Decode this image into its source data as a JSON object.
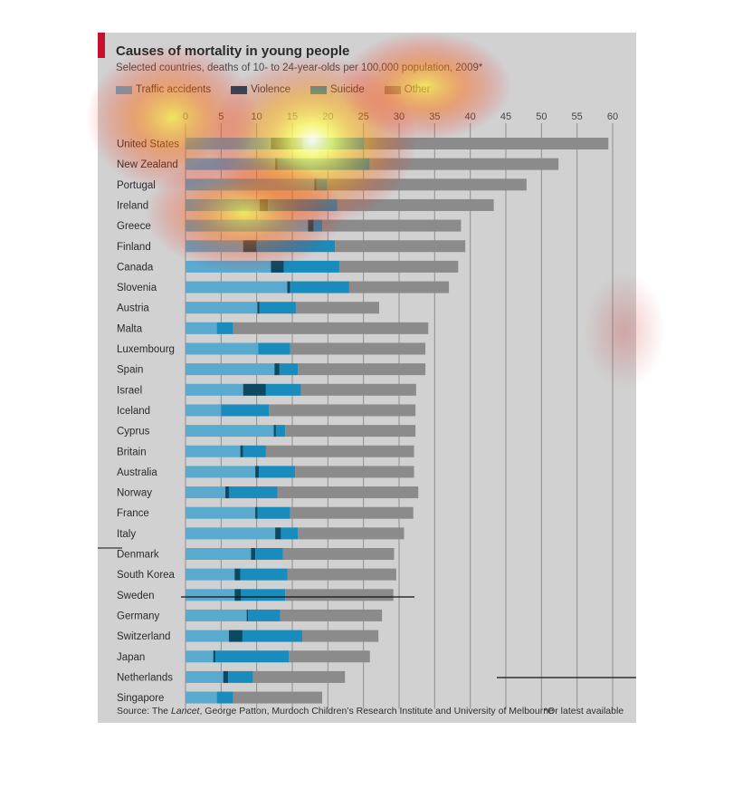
{
  "title": "Causes of mortality in young people",
  "subtitle": "Selected countries, deaths of 10- to 24-year-olds per 100,000 population, 2009*",
  "source_prefix": "Source: The ",
  "source_italic": "Lancet",
  "source_suffix": ", George Patton, Murdoch Children’s Research Institute and University of Melbourne",
  "footnote": "*Or latest available",
  "legend": [
    {
      "label": "Traffic accidents",
      "color": "#5aa9cf"
    },
    {
      "label": "Violence",
      "color": "#0b4a62"
    },
    {
      "label": "Suicide",
      "color": "#1a8bbd"
    },
    {
      "label": "Other",
      "color": "#8b8b8b"
    }
  ],
  "chart_data": {
    "type": "bar",
    "orientation": "horizontal",
    "stacked": true,
    "title": "Causes of mortality in young people",
    "subtitle": "Selected countries, deaths of 10- to 24-year-olds per 100,000 population, 2009*",
    "xlim": [
      0,
      60
    ],
    "xticks": [
      "0",
      "5",
      "10",
      "15",
      "20",
      "25",
      "30",
      "35",
      "40",
      "45",
      "50",
      "55",
      "60"
    ],
    "grid": true,
    "legend_position": "top-left",
    "categories": [
      "United States",
      "New Zealand",
      "Portugal",
      "Ireland",
      "Greece",
      "Finland",
      "Canada",
      "Slovenia",
      "Austria",
      "Malta",
      "Luxembourg",
      "Spain",
      "Israel",
      "Iceland",
      "Cyprus",
      "Britain",
      "Australia",
      "Norway",
      "France",
      "Italy",
      "Denmark",
      "South Korea",
      "Sweden",
      "Germany",
      "Switzerland",
      "Japan",
      "Netherlands",
      "Singapore"
    ],
    "series": [
      {
        "name": "Traffic accidents",
        "color": "#5aa9cf",
        "values": [
          12.0,
          12.6,
          18.1,
          10.4,
          17.2,
          8.1,
          12.0,
          14.3,
          10.1,
          4.4,
          10.2,
          12.5,
          8.1,
          5.0,
          12.4,
          7.7,
          9.8,
          5.6,
          9.8,
          12.6,
          9.2,
          6.9,
          6.9,
          8.6,
          6.1,
          3.9,
          5.3,
          4.4
        ]
      },
      {
        "name": "Violence",
        "color": "#0b4a62",
        "values": [
          4.5,
          0.3,
          0.3,
          1.2,
          0.8,
          1.9,
          1.8,
          0.4,
          0.3,
          0.0,
          0.0,
          0.7,
          3.2,
          0.0,
          0.3,
          0.4,
          0.5,
          0.5,
          0.3,
          0.8,
          0.6,
          0.8,
          0.9,
          0.2,
          1.9,
          0.3,
          0.7,
          0.0
        ]
      },
      {
        "name": "Suicide",
        "color": "#1a8bbd",
        "values": [
          8.6,
          13.0,
          1.5,
          9.7,
          1.2,
          11.0,
          7.8,
          8.3,
          5.1,
          2.3,
          4.5,
          2.6,
          4.9,
          6.7,
          1.3,
          3.2,
          5.1,
          6.8,
          4.6,
          2.4,
          3.9,
          6.6,
          6.2,
          4.5,
          8.4,
          10.3,
          3.5,
          2.3
        ]
      },
      {
        "name": "Other",
        "color": "#8b8b8b",
        "values": [
          34.3,
          26.5,
          28.0,
          22.0,
          19.5,
          18.3,
          16.7,
          14.0,
          11.7,
          27.4,
          19.0,
          17.9,
          16.2,
          20.6,
          18.3,
          20.8,
          16.7,
          19.8,
          17.3,
          14.9,
          15.6,
          15.3,
          15.2,
          14.3,
          10.7,
          11.4,
          12.9,
          12.5
        ]
      }
    ]
  }
}
